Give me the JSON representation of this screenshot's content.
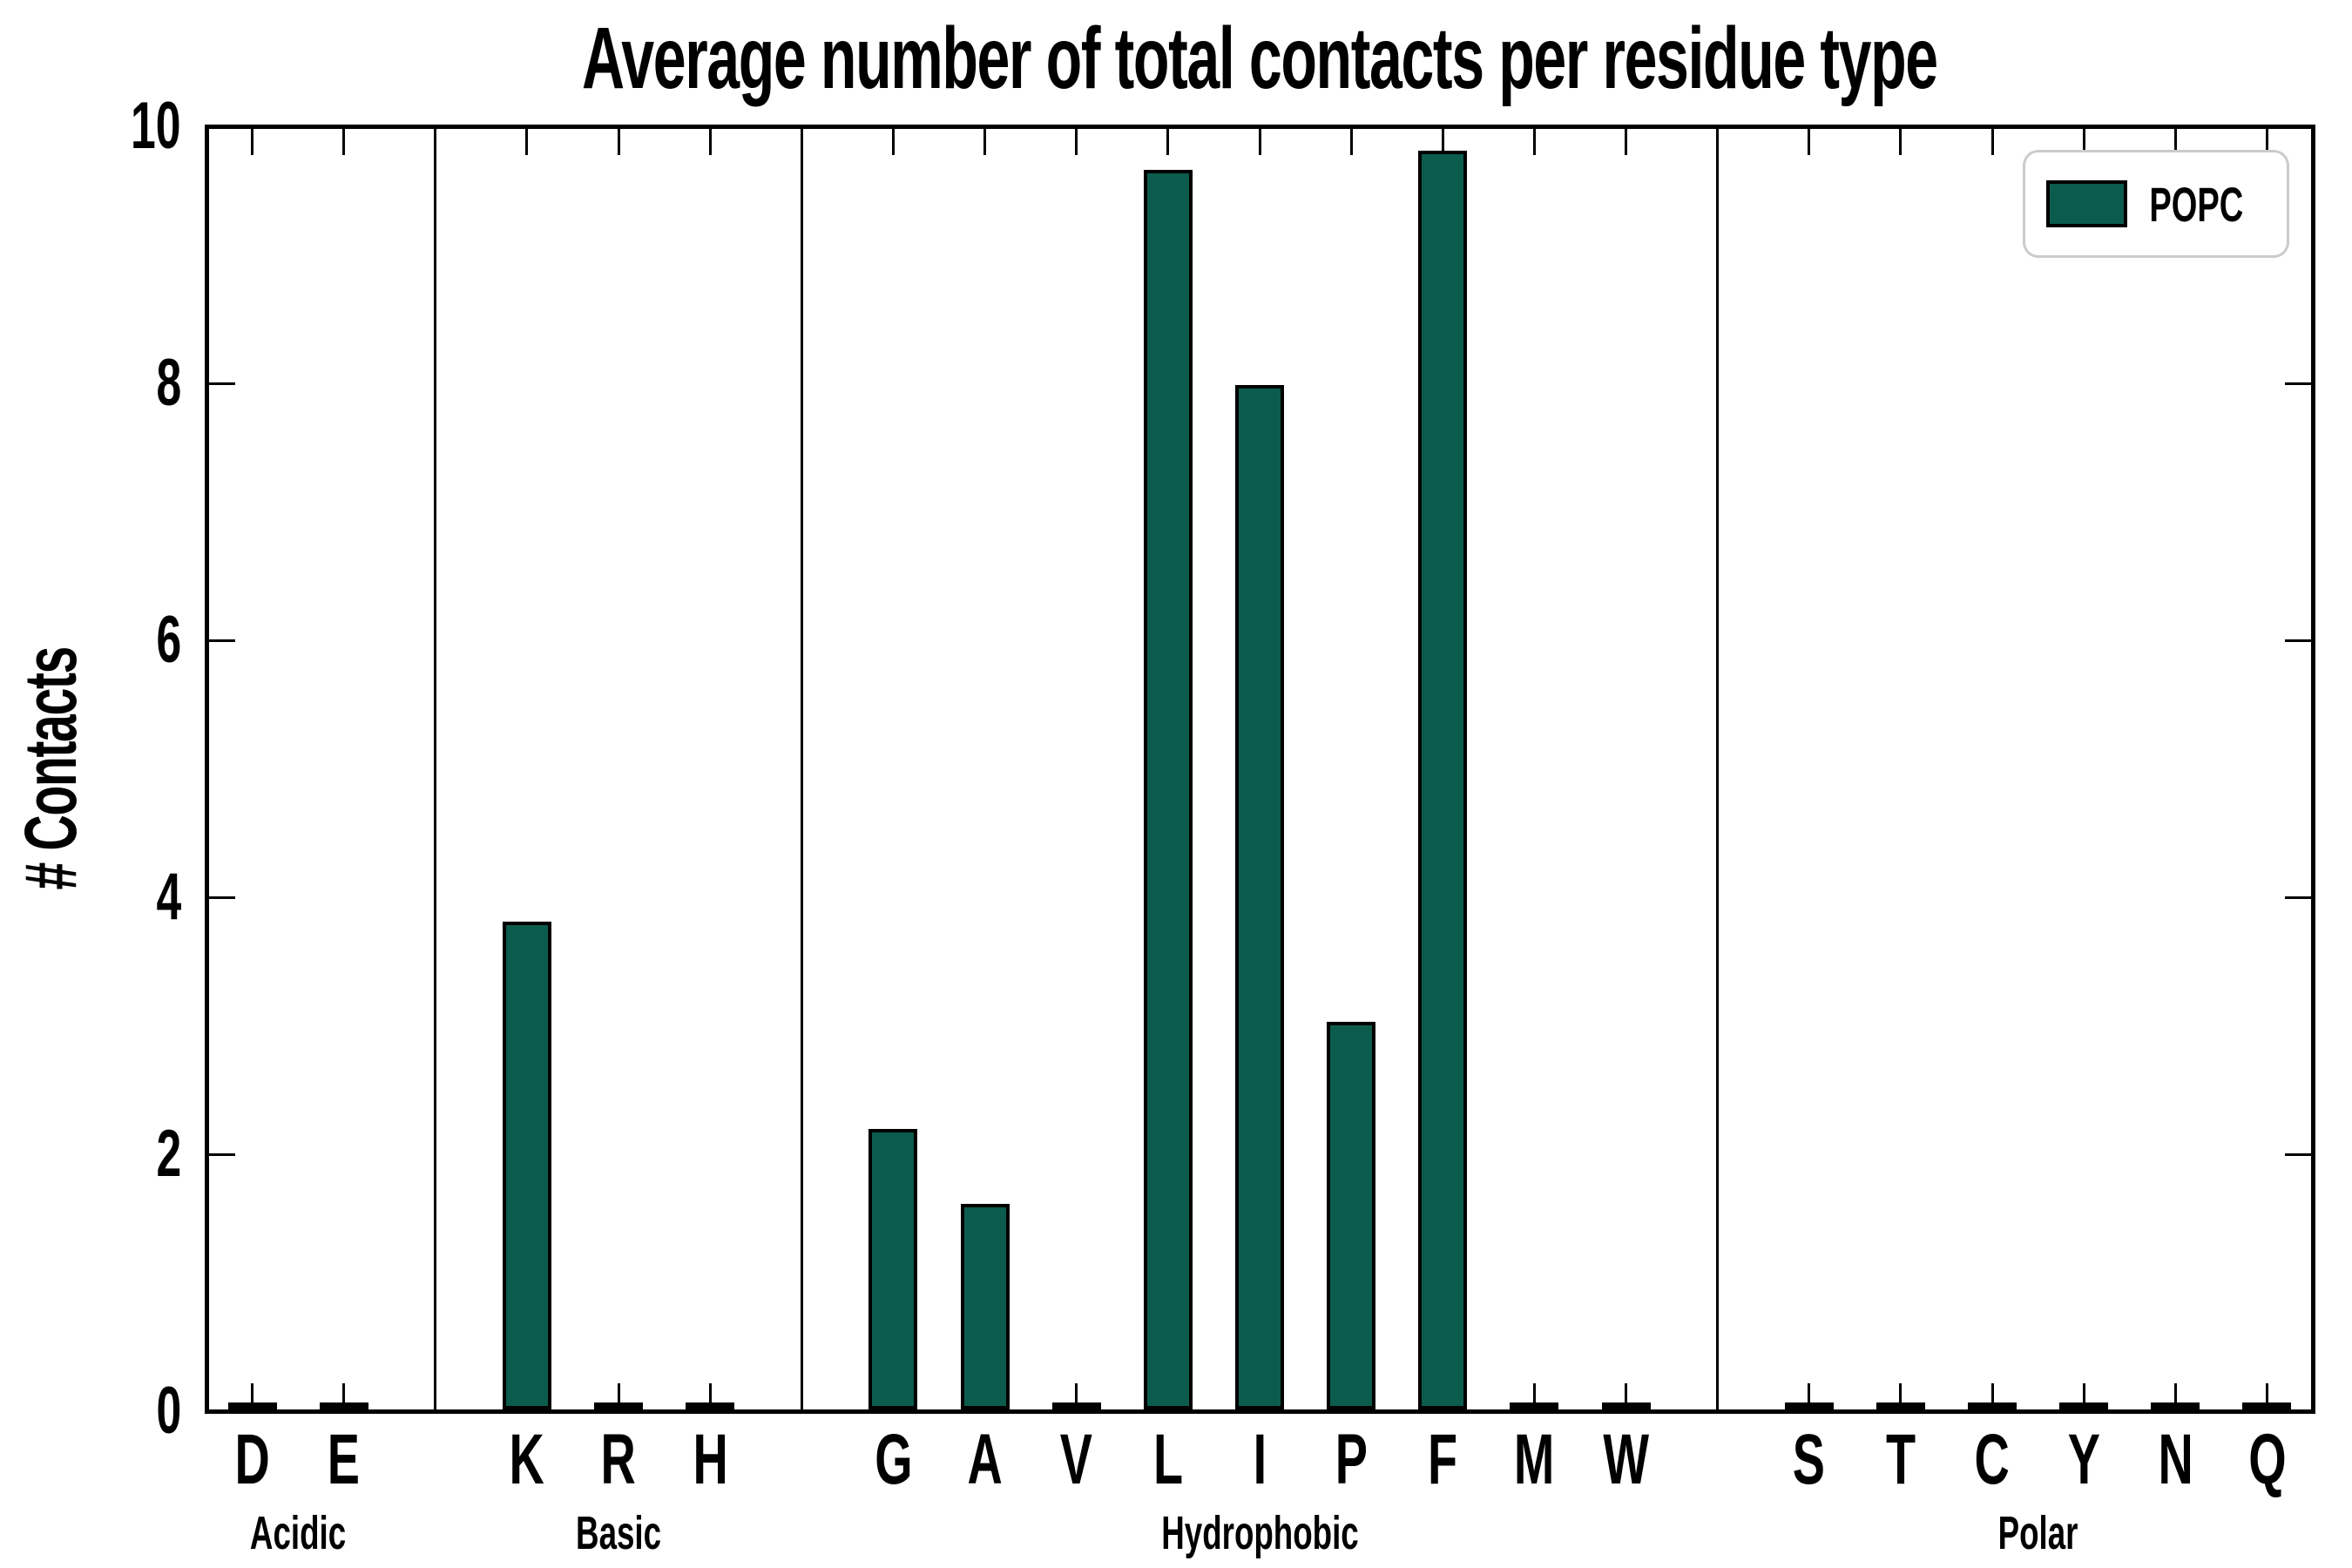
{
  "figure": {
    "background": "#ffffff",
    "text_color": "#000000",
    "axes_edge_color": "#000000"
  },
  "chart_data": {
    "type": "bar",
    "title": "Average number of total contacts per residue type",
    "xlabel": "",
    "ylabel": "# Contacts",
    "ylim": [
      0,
      10
    ],
    "yticks": [
      "0",
      "2",
      "4",
      "6",
      "8",
      "10"
    ],
    "grid": false,
    "bar_color": "#0B5C4C",
    "bar_edge_color": "#000000",
    "legend": {
      "position": "upper right",
      "entries": [
        "POPC"
      ]
    },
    "series": [
      {
        "name": "POPC",
        "values": [
          0.02,
          0.02,
          3.8,
          0.02,
          0.02,
          2.18,
          1.6,
          0.02,
          9.65,
          7.97,
          3.02,
          9.8,
          0.02,
          0.02,
          0.02,
          0.02,
          0.02,
          0.02,
          0.02,
          0.02
        ]
      }
    ],
    "categories": [
      "D",
      "E",
      "K",
      "R",
      "H",
      "G",
      "A",
      "V",
      "L",
      "I",
      "P",
      "F",
      "M",
      "W",
      "S",
      "T",
      "C",
      "Y",
      "N",
      "Q"
    ],
    "groups": [
      {
        "label": "Acidic",
        "categories": [
          "D",
          "E"
        ],
        "values": [
          0.02,
          0.02
        ]
      },
      {
        "label": "Basic",
        "categories": [
          "K",
          "R",
          "H"
        ],
        "values": [
          3.8,
          0.02,
          0.02
        ]
      },
      {
        "label": "Hydrophobic",
        "categories": [
          "G",
          "A",
          "V",
          "L",
          "I",
          "P",
          "F",
          "M",
          "W"
        ],
        "values": [
          2.18,
          1.6,
          0.02,
          9.65,
          7.97,
          3.02,
          9.8,
          0.02,
          0.02
        ]
      },
      {
        "label": "Polar",
        "categories": [
          "S",
          "T",
          "C",
          "Y",
          "N",
          "Q"
        ],
        "values": [
          0.02,
          0.02,
          0.02,
          0.02,
          0.02,
          0.02
        ]
      }
    ]
  }
}
